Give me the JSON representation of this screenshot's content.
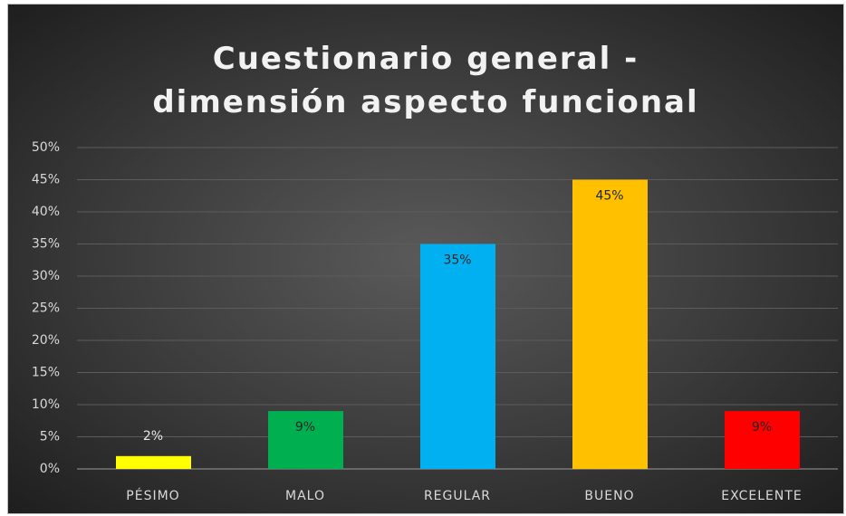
{
  "chart_data": {
    "type": "bar",
    "title": "Cuestionario general - dimensión aspecto funcional",
    "categories": [
      "PÉSIMO",
      "MALO",
      "REGULAR",
      "BUENO",
      "EXCELENTE"
    ],
    "values": [
      2,
      9,
      35,
      45,
      9
    ],
    "value_labels": [
      "2%",
      "9%",
      "35%",
      "45%",
      "9%"
    ],
    "colors": [
      "#ffff00",
      "#00b050",
      "#00b0f0",
      "#ffc000",
      "#ff0000"
    ],
    "ylim": [
      0,
      50
    ],
    "yticks": [
      {
        "value": 0,
        "label": "0%"
      },
      {
        "value": 5,
        "label": "5%"
      },
      {
        "value": 10,
        "label": "10%"
      },
      {
        "value": 15,
        "label": "15%"
      },
      {
        "value": 20,
        "label": "20%"
      },
      {
        "value": 25,
        "label": "25%"
      },
      {
        "value": 30,
        "label": "30%"
      },
      {
        "value": 35,
        "label": "35%"
      },
      {
        "value": 40,
        "label": "40%"
      },
      {
        "value": 45,
        "label": "45%"
      },
      {
        "value": 50,
        "label": "50%"
      }
    ],
    "grid": true
  }
}
